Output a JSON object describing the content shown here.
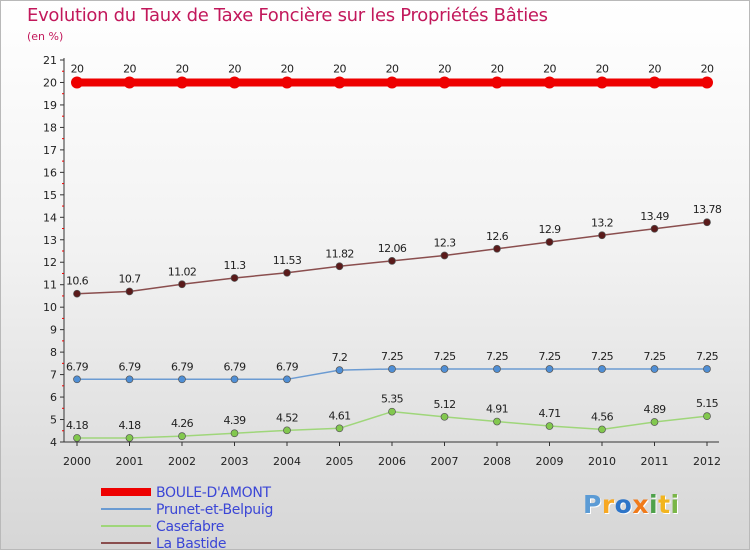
{
  "title": "Evolution du Taux de Taxe Foncière sur les Propriétés Bâties",
  "unit": "(en %)",
  "logo": {
    "text": "Proxiti",
    "letters": [
      {
        "ch": "P",
        "color": "#5b9bd5"
      },
      {
        "ch": "r",
        "color": "#f7a823"
      },
      {
        "ch": "o",
        "color": "#2e75c8"
      },
      {
        "ch": "x",
        "color": "#f07a1a"
      },
      {
        "ch": "i",
        "color": "#4ea14a"
      },
      {
        "ch": "t",
        "color": "#f2b51f"
      },
      {
        "ch": "i",
        "color": "#7ab648"
      }
    ]
  },
  "chart_data": {
    "type": "line",
    "title": "Evolution du Taux de Taxe Foncière sur les Propriétés Bâties",
    "ylabel": "(en %)",
    "xlabel": "",
    "categories": [
      "2000",
      "2001",
      "2002",
      "2003",
      "2004",
      "2005",
      "2006",
      "2007",
      "2008",
      "2009",
      "2010",
      "2011",
      "2012"
    ],
    "ylim": [
      4,
      21
    ],
    "yticks": [
      "4",
      "5",
      "6",
      "7",
      "8",
      "9",
      "10",
      "11",
      "12",
      "13",
      "14",
      "15",
      "16",
      "17",
      "18",
      "19",
      "20",
      "21"
    ],
    "legend_position": "bottom-left",
    "series": [
      {
        "name": "BOULE-D'AMONT",
        "color": "#ee0000",
        "values": [
          20,
          20,
          20,
          20,
          20,
          20,
          20,
          20,
          20,
          20,
          20,
          20,
          20
        ],
        "labels": [
          "20",
          "20",
          "20",
          "20",
          "20",
          "20",
          "20",
          "20",
          "20",
          "20",
          "20",
          "20",
          "20"
        ]
      },
      {
        "name": "Prunet-et-Belpuig",
        "color": "#6b9bd2",
        "marker_color": "#4f8fd6",
        "values": [
          6.79,
          6.79,
          6.79,
          6.79,
          6.79,
          7.2,
          7.25,
          7.25,
          7.25,
          7.25,
          7.25,
          7.25,
          7.25
        ],
        "labels": [
          "6.79",
          "6.79",
          "6.79",
          "6.79",
          "6.79",
          "7.2",
          "7.25",
          "7.25",
          "7.25",
          "7.25",
          "7.25",
          "7.25",
          "7.25"
        ]
      },
      {
        "name": "Casefabre",
        "color": "#9fd67a",
        "marker_color": "#82c84e",
        "values": [
          4.18,
          4.18,
          4.26,
          4.39,
          4.52,
          4.61,
          5.35,
          5.12,
          4.91,
          4.71,
          4.56,
          4.89,
          5.15
        ],
        "labels": [
          "4.18",
          "4.18",
          "4.26",
          "4.39",
          "4.52",
          "4.61",
          "5.35",
          "5.12",
          "4.91",
          "4.71",
          "4.56",
          "4.89",
          "5.15"
        ]
      },
      {
        "name": "La Bastide",
        "color": "#8a4e4e",
        "marker_color": "#5a1a1a",
        "values": [
          10.6,
          10.7,
          11.02,
          11.3,
          11.53,
          11.82,
          12.06,
          12.3,
          12.6,
          12.9,
          13.2,
          13.49,
          13.78
        ],
        "labels": [
          "10.6",
          "10.7",
          "11.02",
          "11.3",
          "11.53",
          "11.82",
          "12.06",
          "12.3",
          "12.6",
          "12.9",
          "13.2",
          "13.49",
          "13.78"
        ]
      }
    ]
  }
}
